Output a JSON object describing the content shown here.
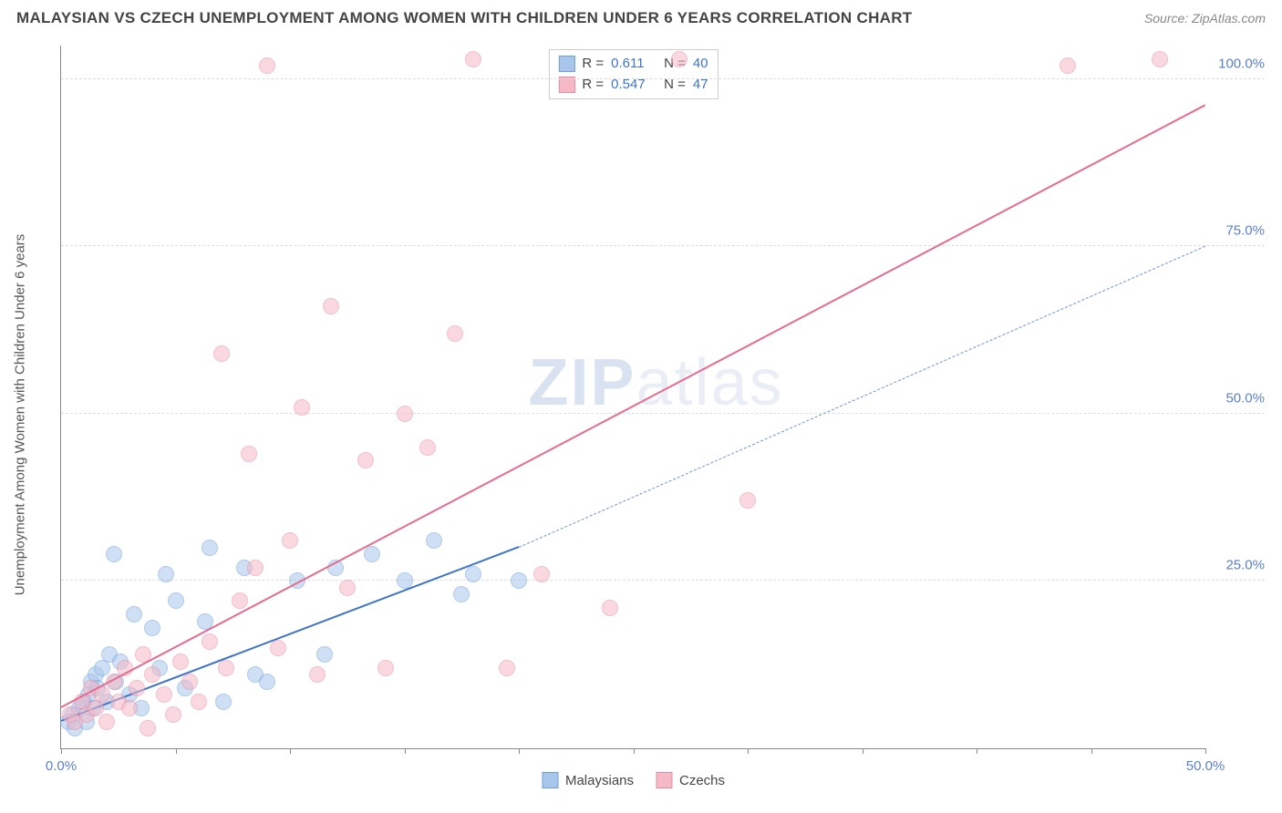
{
  "title": "MALAYSIAN VS CZECH UNEMPLOYMENT AMONG WOMEN WITH CHILDREN UNDER 6 YEARS CORRELATION CHART",
  "source": "Source: ZipAtlas.com",
  "ylabel": "Unemployment Among Women with Children Under 6 years",
  "watermark_bold": "ZIP",
  "watermark_light": "atlas",
  "chart": {
    "type": "scatter",
    "xlim": [
      0,
      50
    ],
    "ylim": [
      0,
      105
    ],
    "x_ticks": [
      0,
      5,
      10,
      15,
      20,
      25,
      30,
      35,
      40,
      45,
      50
    ],
    "x_tick_labels": {
      "0": "0.0%",
      "50": "50.0%"
    },
    "y_gridlines": [
      25,
      50,
      75,
      100
    ],
    "y_tick_labels": {
      "25": "25.0%",
      "50": "50.0%",
      "75": "75.0%",
      "100": "100.0%"
    },
    "axis_color": "#888888",
    "grid_color": "#dddddd",
    "tick_label_color": "#5b7fd1",
    "background_color": "#ffffff",
    "marker_radius": 9,
    "marker_opacity": 0.55,
    "marker_border_width": 1.5
  },
  "series": [
    {
      "name": "Malaysians",
      "color_fill": "#a8c6ec",
      "color_border": "#6fa0de",
      "R": "0.611",
      "N": "40",
      "trend": {
        "x1": 0,
        "y1": 4,
        "x2": 20,
        "y2": 30,
        "width": 2.5,
        "dash": "none",
        "color": "#3f74c9"
      },
      "trend_ext": {
        "x1": 20,
        "y1": 30,
        "x2": 50,
        "y2": 75,
        "width": 1.5,
        "dash": "6 5",
        "color": "#6a93d6"
      },
      "points": [
        [
          0.3,
          4
        ],
        [
          0.5,
          5
        ],
        [
          0.6,
          3
        ],
        [
          0.8,
          6
        ],
        [
          1.0,
          7
        ],
        [
          1.1,
          4
        ],
        [
          1.2,
          8
        ],
        [
          1.3,
          10
        ],
        [
          1.4,
          6
        ],
        [
          1.5,
          11
        ],
        [
          1.6,
          9
        ],
        [
          1.8,
          12
        ],
        [
          2.0,
          7
        ],
        [
          2.1,
          14
        ],
        [
          2.3,
          29
        ],
        [
          2.4,
          10
        ],
        [
          2.6,
          13
        ],
        [
          3.0,
          8
        ],
        [
          3.2,
          20
        ],
        [
          3.5,
          6
        ],
        [
          4.0,
          18
        ],
        [
          4.3,
          12
        ],
        [
          4.6,
          26
        ],
        [
          5.0,
          22
        ],
        [
          5.4,
          9
        ],
        [
          6.3,
          19
        ],
        [
          6.5,
          30
        ],
        [
          7.1,
          7
        ],
        [
          8.0,
          27
        ],
        [
          8.5,
          11
        ],
        [
          9.0,
          10
        ],
        [
          10.3,
          25
        ],
        [
          11.5,
          14
        ],
        [
          12.0,
          27
        ],
        [
          13.6,
          29
        ],
        [
          15.0,
          25
        ],
        [
          16.3,
          31
        ],
        [
          17.5,
          23
        ],
        [
          18.0,
          26
        ],
        [
          20.0,
          25
        ]
      ]
    },
    {
      "name": "Czechs",
      "color_fill": "#f5b9c6",
      "color_border": "#ec8aa3",
      "R": "0.547",
      "N": "47",
      "trend": {
        "x1": 0,
        "y1": 6,
        "x2": 50,
        "y2": 96,
        "width": 2.5,
        "dash": "none",
        "color": "#e86b8f"
      },
      "points": [
        [
          0.4,
          5
        ],
        [
          0.6,
          4
        ],
        [
          0.9,
          7
        ],
        [
          1.1,
          5
        ],
        [
          1.3,
          9
        ],
        [
          1.5,
          6
        ],
        [
          1.8,
          8
        ],
        [
          2.0,
          4
        ],
        [
          2.3,
          10
        ],
        [
          2.5,
          7
        ],
        [
          2.8,
          12
        ],
        [
          3.0,
          6
        ],
        [
          3.3,
          9
        ],
        [
          3.6,
          14
        ],
        [
          3.8,
          3
        ],
        [
          4.0,
          11
        ],
        [
          4.5,
          8
        ],
        [
          4.9,
          5
        ],
        [
          5.2,
          13
        ],
        [
          5.6,
          10
        ],
        [
          6.0,
          7
        ],
        [
          6.5,
          16
        ],
        [
          7.0,
          59
        ],
        [
          7.2,
          12
        ],
        [
          7.8,
          22
        ],
        [
          8.2,
          44
        ],
        [
          8.5,
          27
        ],
        [
          9.0,
          102
        ],
        [
          9.5,
          15
        ],
        [
          10.0,
          31
        ],
        [
          10.5,
          51
        ],
        [
          11.2,
          11
        ],
        [
          11.8,
          66
        ],
        [
          12.5,
          24
        ],
        [
          13.3,
          43
        ],
        [
          14.2,
          12
        ],
        [
          15.0,
          50
        ],
        [
          16.0,
          45
        ],
        [
          17.2,
          62
        ],
        [
          18.0,
          103
        ],
        [
          19.5,
          12
        ],
        [
          21.0,
          26
        ],
        [
          24.0,
          21
        ],
        [
          27.0,
          103
        ],
        [
          30.0,
          37
        ],
        [
          44.0,
          102
        ],
        [
          48.0,
          103
        ]
      ]
    }
  ],
  "legend_top": {
    "r_label": "R =",
    "n_label": "N =",
    "value_color": "#3f74c9",
    "label_color": "#444444",
    "border_color": "#cccccc"
  },
  "legend_bottom_label_color": "#444444"
}
